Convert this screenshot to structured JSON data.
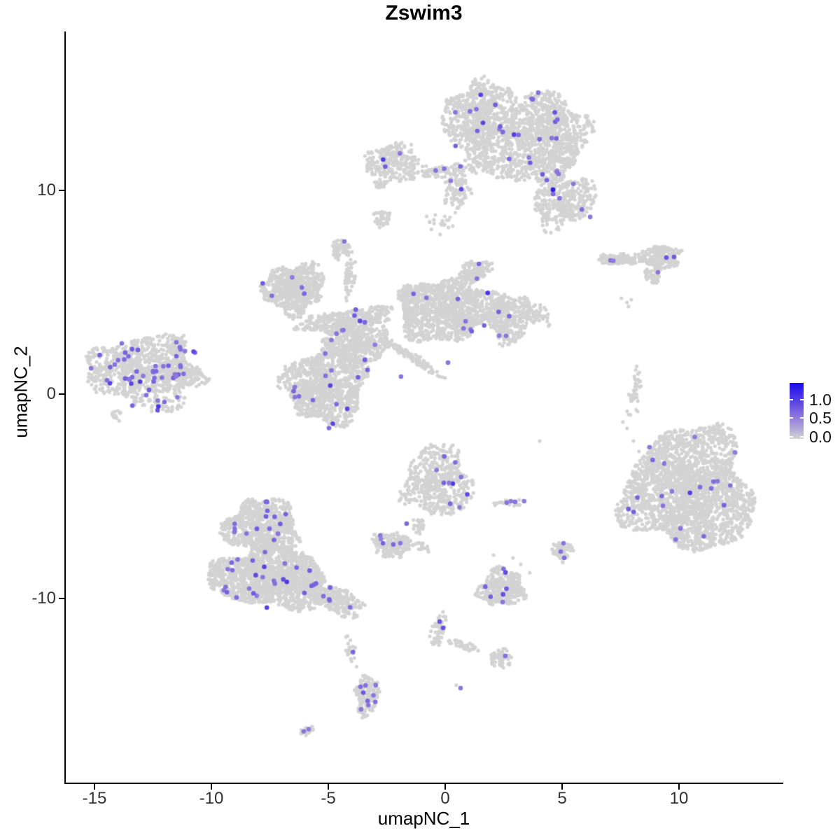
{
  "title": "Zswim3",
  "axes": {
    "x": {
      "label": "umapNC_1",
      "tick_labels": [
        "-15",
        "-10",
        "-5",
        "0",
        "5",
        "10"
      ],
      "tick_values": [
        -15,
        -10,
        -5,
        0,
        5,
        10
      ]
    },
    "y": {
      "label": "umapNC_2",
      "tick_labels": [
        "-10",
        "0",
        "10"
      ],
      "tick_values": [
        -10,
        0,
        10
      ]
    }
  },
  "legend": {
    "labels": [
      "1.0",
      "0.5",
      "0.0"
    ],
    "values": [
      1.0,
      0.5,
      0.0
    ],
    "bar_min": -0.05,
    "bar_max": 1.44,
    "low_color": "#D3D3D3",
    "mid_color": "#8E75DC",
    "high_color": "#1A0AEE"
  },
  "chart_data": {
    "type": "scatter",
    "title": "Zswim3",
    "xlabel": "umapNC_1",
    "ylabel": "umapNC_2",
    "xlim": [
      -16.3,
      14.4
    ],
    "ylim": [
      -19.1,
      17.8
    ],
    "grid": false,
    "legend_position": "right",
    "point_color_low": "#D3D3D3",
    "point_color_mid": "#8E75DC",
    "point_color_high": "#1A0AEE",
    "max_expression": 1.44,
    "clusters": [
      {
        "name": "top-head-left",
        "cx": 1.62,
        "cy": 13.1,
        "rx": 1.5,
        "ry": 2.4,
        "rot": -10,
        "n": 900,
        "e": 13
      },
      {
        "name": "top-head-right",
        "cx": 4.31,
        "cy": 12.6,
        "rx": 1.65,
        "ry": 2.25,
        "rot": 15,
        "n": 1000,
        "e": 15
      },
      {
        "name": "top-right-lower-lobe",
        "cx": 5.06,
        "cy": 9.5,
        "rx": 1.35,
        "ry": 1.3,
        "rot": -20,
        "n": 380,
        "e": 7
      },
      {
        "name": "top-neck",
        "cx": 0.48,
        "cy": 10.0,
        "rx": 0.55,
        "ry": 1.0,
        "rot": 0,
        "n": 90,
        "e": 2
      },
      {
        "name": "top-left-satellite",
        "cx": -2.22,
        "cy": 11.35,
        "rx": 1.14,
        "ry": 0.95,
        "rot": 0,
        "n": 260,
        "e": 3
      },
      {
        "name": "top-connector-strip",
        "cx": 0.03,
        "cy": 10.95,
        "rx": 1.26,
        "ry": 0.34,
        "rot": -5,
        "n": 80,
        "e": 3
      },
      {
        "name": "top-satellite-appendage",
        "cx": -2.78,
        "cy": 10.3,
        "rx": 0.27,
        "ry": 0.22,
        "rot": 0,
        "n": 22,
        "e": 0
      },
      {
        "name": "small-blob-upper",
        "cx": -2.72,
        "cy": 8.6,
        "rx": 0.38,
        "ry": 0.45,
        "rot": 0,
        "n": 40,
        "e": 0
      },
      {
        "name": "top-trail-sparse",
        "cx": -0.18,
        "cy": 8.35,
        "rx": 0.7,
        "ry": 0.75,
        "rot": 0,
        "n": 22,
        "e": 0,
        "sparse": true
      },
      {
        "name": "right-strip",
        "cx": 7.46,
        "cy": 6.6,
        "rx": 1.0,
        "ry": 0.26,
        "rot": 3,
        "n": 110,
        "e": 0
      },
      {
        "name": "right-strip-blob",
        "cx": 9.22,
        "cy": 6.72,
        "rx": 0.88,
        "ry": 0.56,
        "rot": 0,
        "n": 230,
        "e": 0
      },
      {
        "name": "right-strip-tail",
        "cx": 8.86,
        "cy": 5.75,
        "rx": 0.4,
        "ry": 0.3,
        "rot": 40,
        "n": 45,
        "e": 0
      },
      {
        "name": "central-upper-left-lobe",
        "cx": -6.47,
        "cy": 5.18,
        "rx": 1.35,
        "ry": 1.2,
        "rot": -15,
        "n": 650,
        "e": 5
      },
      {
        "name": "central-arm",
        "cx": -4.22,
        "cy": 3.6,
        "rx": 2.0,
        "ry": 0.55,
        "rot": -8,
        "n": 380,
        "e": 5
      },
      {
        "name": "central-top-knob",
        "cx": -4.43,
        "cy": 7.07,
        "rx": 0.42,
        "ry": 0.5,
        "rot": 0,
        "n": 70,
        "e": 0
      },
      {
        "name": "central-top-stem",
        "cx": -4.1,
        "cy": 5.7,
        "rx": 0.22,
        "ry": 1.1,
        "rot": 8,
        "n": 55,
        "e": 0,
        "sparse": true
      },
      {
        "name": "central-junction",
        "cx": -3.77,
        "cy": 2.44,
        "rx": 1.5,
        "ry": 1.0,
        "rot": 0,
        "n": 420,
        "e": 6
      },
      {
        "name": "central-right-lobe",
        "cx": 0.06,
        "cy": 4.12,
        "rx": 2.2,
        "ry": 1.5,
        "rot": -5,
        "n": 1200,
        "e": 9
      },
      {
        "name": "central-top-bump",
        "cx": 1.26,
        "cy": 6.0,
        "rx": 0.75,
        "ry": 0.5,
        "rot": -20,
        "n": 130,
        "e": 2
      },
      {
        "name": "central-right-extension",
        "cx": 2.72,
        "cy": 3.7,
        "rx": 0.95,
        "ry": 1.25,
        "rot": 10,
        "n": 300,
        "e": 4
      },
      {
        "name": "central-far-right-arm",
        "cx": 3.86,
        "cy": 3.9,
        "rx": 0.7,
        "ry": 0.5,
        "rot": 20,
        "n": 70,
        "e": 0,
        "sparse": true
      },
      {
        "name": "central-diagonal-strip",
        "cx": -1.44,
        "cy": 1.82,
        "rx": 1.7,
        "ry": 0.22,
        "rot": 33,
        "n": 120,
        "e": 0,
        "sparse": true
      },
      {
        "name": "central-lower-left-blob",
        "cx": -5.12,
        "cy": 0.45,
        "rx": 1.8,
        "ry": 1.85,
        "rot": 0,
        "n": 1050,
        "e": 14
      },
      {
        "name": "left-cluster-main",
        "cx": -12.9,
        "cy": 1.06,
        "rx": 2.35,
        "ry": 1.75,
        "rot": 5,
        "n": 900,
        "e": 46
      },
      {
        "name": "left-cluster-tail",
        "cx": -11.2,
        "cy": 0.96,
        "rx": 1.1,
        "ry": 0.5,
        "rot": 10,
        "n": 140,
        "e": 4
      },
      {
        "name": "left-cluster-spur",
        "cx": -11.5,
        "cy": 2.44,
        "rx": 0.5,
        "ry": 0.35,
        "rot": -40,
        "n": 40,
        "e": 0
      },
      {
        "name": "left-cluster-crumbs",
        "cx": -14.07,
        "cy": -1.06,
        "rx": 0.3,
        "ry": 0.3,
        "rot": 0,
        "n": 14,
        "e": 0
      },
      {
        "name": "right-big-blob",
        "cx": 10.45,
        "cy": -4.7,
        "rx": 2.75,
        "ry": 3.0,
        "rot": 10,
        "n": 2400,
        "e": 21
      },
      {
        "name": "bottomleft-upper-lobe",
        "cx": -7.81,
        "cy": -6.52,
        "rx": 1.6,
        "ry": 1.35,
        "rot": 0,
        "n": 700,
        "e": 16
      },
      {
        "name": "bottomleft-lower-lobe",
        "cx": -7.51,
        "cy": -8.99,
        "rx": 2.5,
        "ry": 1.5,
        "rot": 3,
        "n": 1500,
        "e": 26
      },
      {
        "name": "bottomleft-tail",
        "cx": -4.73,
        "cy": -10.05,
        "rx": 1.3,
        "ry": 0.6,
        "rot": 25,
        "n": 260,
        "e": 6
      },
      {
        "name": "bottomleft-chain",
        "cx": -4.07,
        "cy": -12.5,
        "rx": 0.25,
        "ry": 1.0,
        "rot": -12,
        "n": 22,
        "e": 1,
        "sparse": true
      },
      {
        "name": "center-bottom-blob",
        "cx": -0.33,
        "cy": -4.3,
        "rx": 1.45,
        "ry": 1.75,
        "rot": -12,
        "n": 520,
        "e": 10
      },
      {
        "name": "center-bottom-strand",
        "cx": -1.14,
        "cy": -6.48,
        "rx": 0.3,
        "ry": 0.5,
        "rot": -30,
        "n": 22,
        "e": 0,
        "sparse": true
      },
      {
        "name": "horseshoe-blob",
        "cx": -2.28,
        "cy": -7.41,
        "rx": 0.85,
        "ry": 0.65,
        "rot": 0,
        "n": 160,
        "e": 0
      },
      {
        "name": "horseshoe-right-bits",
        "cx": -0.99,
        "cy": -7.48,
        "rx": 0.4,
        "ry": 0.3,
        "rot": 0,
        "n": 16,
        "e": 0,
        "sparse": true
      },
      {
        "name": "mini-strip",
        "cx": 2.84,
        "cy": -5.32,
        "rx": 0.62,
        "ry": 0.15,
        "rot": 0,
        "n": 26,
        "e": 0
      },
      {
        "name": "small-triangle",
        "cx": 4.97,
        "cy": -7.68,
        "rx": 0.5,
        "ry": 0.55,
        "rot": 0,
        "n": 60,
        "e": 0
      },
      {
        "name": "bottom-center-blob",
        "cx": 2.4,
        "cy": -9.5,
        "rx": 1.0,
        "ry": 0.9,
        "rot": 0,
        "n": 330,
        "e": 7
      },
      {
        "name": "bottom-strand-vertical",
        "cx": -0.3,
        "cy": -11.56,
        "rx": 0.3,
        "ry": 0.85,
        "rot": 14,
        "n": 55,
        "e": 0
      },
      {
        "name": "bottom-strand-diagonal",
        "cx": 0.78,
        "cy": -12.28,
        "rx": 0.7,
        "ry": 0.2,
        "rot": 18,
        "n": 40,
        "e": 0
      },
      {
        "name": "bottom-strand-end-blob",
        "cx": 2.4,
        "cy": -12.97,
        "rx": 0.45,
        "ry": 0.5,
        "rot": 0,
        "n": 55,
        "e": 0
      },
      {
        "name": "bottom-dense-blob",
        "cx": -3.35,
        "cy": -14.79,
        "rx": 0.48,
        "ry": 1.05,
        "rot": 5,
        "n": 160,
        "e": 9
      },
      {
        "name": "bottom-tiny-diagonal",
        "cx": -5.9,
        "cy": -16.47,
        "rx": 0.33,
        "ry": 0.2,
        "rot": -20,
        "n": 14,
        "e": 0
      },
      {
        "name": "right-curved-strip",
        "cx": 8.11,
        "cy": 0.0,
        "rx": 0.3,
        "ry": 1.25,
        "rot": 8,
        "n": 40,
        "e": 0,
        "sparse": true
      }
    ],
    "gray_singles": [
      [
        7.54,
        4.7
      ],
      [
        7.78,
        4.49
      ],
      [
        7.96,
        4.63
      ],
      [
        7.84,
        4.29
      ],
      [
        2.13,
        -5.45
      ],
      [
        7.78,
        -1.68
      ],
      [
        8.05,
        -2.3
      ],
      [
        8.29,
        -2.81
      ],
      [
        4.04,
        -2.3
      ],
      [
        7.6,
        -1.37
      ],
      [
        0.48,
        -14.27
      ],
      [
        2.9,
        -8.03
      ],
      [
        3.23,
        -8.34
      ],
      [
        2.31,
        -8.44
      ],
      [
        3.62,
        -8.75
      ],
      [
        2.07,
        -7.89
      ]
    ],
    "expr_singles": [
      [
        4.61,
        10.02,
        1.3
      ],
      [
        -4.31,
        7.48,
        0.6
      ],
      [
        0.12,
        1.54,
        0.6
      ],
      [
        -1.89,
        0.86,
        0.6
      ],
      [
        7.07,
        6.55,
        0.6
      ],
      [
        7.19,
        6.53,
        0.55
      ],
      [
        9.46,
        6.69,
        0.85
      ],
      [
        9.79,
        6.72,
        0.8
      ],
      [
        9.1,
        5.97,
        0.6
      ],
      [
        3.38,
        -5.25,
        0.55
      ],
      [
        2.63,
        -5.32,
        0.6
      ],
      [
        2.81,
        -5.25,
        0.55
      ],
      [
        2.99,
        -5.28,
        0.6
      ],
      [
        0.66,
        -14.41,
        0.6
      ],
      [
        2.57,
        -12.83,
        0.65
      ],
      [
        -0.24,
        -11.15,
        0.85
      ],
      [
        -0.09,
        -11.46,
        0.9
      ],
      [
        -11.5,
        2.54,
        0.6
      ],
      [
        -11.35,
        2.3,
        0.65
      ],
      [
        -1.65,
        -6.35,
        0.7
      ],
      [
        -6.05,
        -16.53,
        0.6
      ],
      [
        -5.84,
        -16.42,
        0.55
      ],
      [
        5.06,
        -7.31,
        0.6
      ],
      [
        4.94,
        -7.72,
        0.6
      ],
      [
        5.09,
        -8.03,
        0.65
      ],
      [
        -2.78,
        -6.93,
        0.6
      ],
      [
        -2.66,
        -7.31,
        0.75
      ],
      [
        -2.22,
        -7.37,
        0.7
      ],
      [
        -1.92,
        -7.31,
        0.6
      ],
      [
        -2.75,
        -7.1,
        0.5
      ]
    ]
  }
}
